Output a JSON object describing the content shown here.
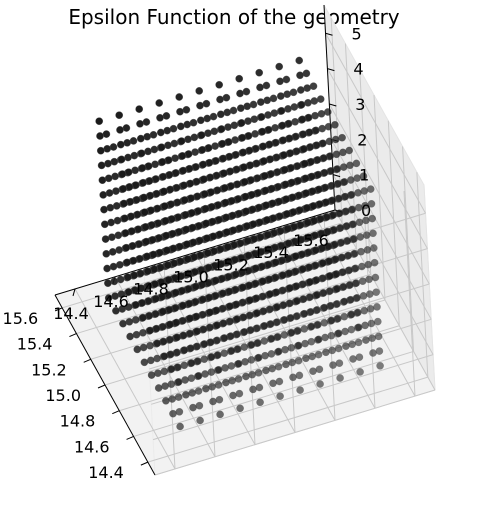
{
  "chart_data": {
    "type": "scatter",
    "projection": "3d",
    "title": "Epsilon Function of the geometry",
    "xlabel": "",
    "ylabel": "",
    "zlabel": "",
    "grid": true,
    "x_ticks": [
      "14.4",
      "14.6",
      "14.8",
      "15.0",
      "15.2",
      "15.4",
      "15.6"
    ],
    "y_ticks": [
      "14.4",
      "14.6",
      "14.8",
      "15.0",
      "15.2",
      "15.4",
      "15.6"
    ],
    "z_ticks": [
      "0",
      "1",
      "2",
      "3",
      "4",
      "5"
    ],
    "xlim": [
      14.3,
      15.7
    ],
    "ylim": [
      14.3,
      15.7
    ],
    "zlim": [
      0,
      5.8
    ],
    "series": [
      {
        "marker_color": "#1a1a1a",
        "x_range": [
          14.5,
          15.5
        ],
        "y_range": [
          14.5,
          15.5
        ],
        "z_range": [
          0.3,
          5.3
        ],
        "grid_counts": [
          11,
          11,
          13
        ]
      }
    ]
  }
}
